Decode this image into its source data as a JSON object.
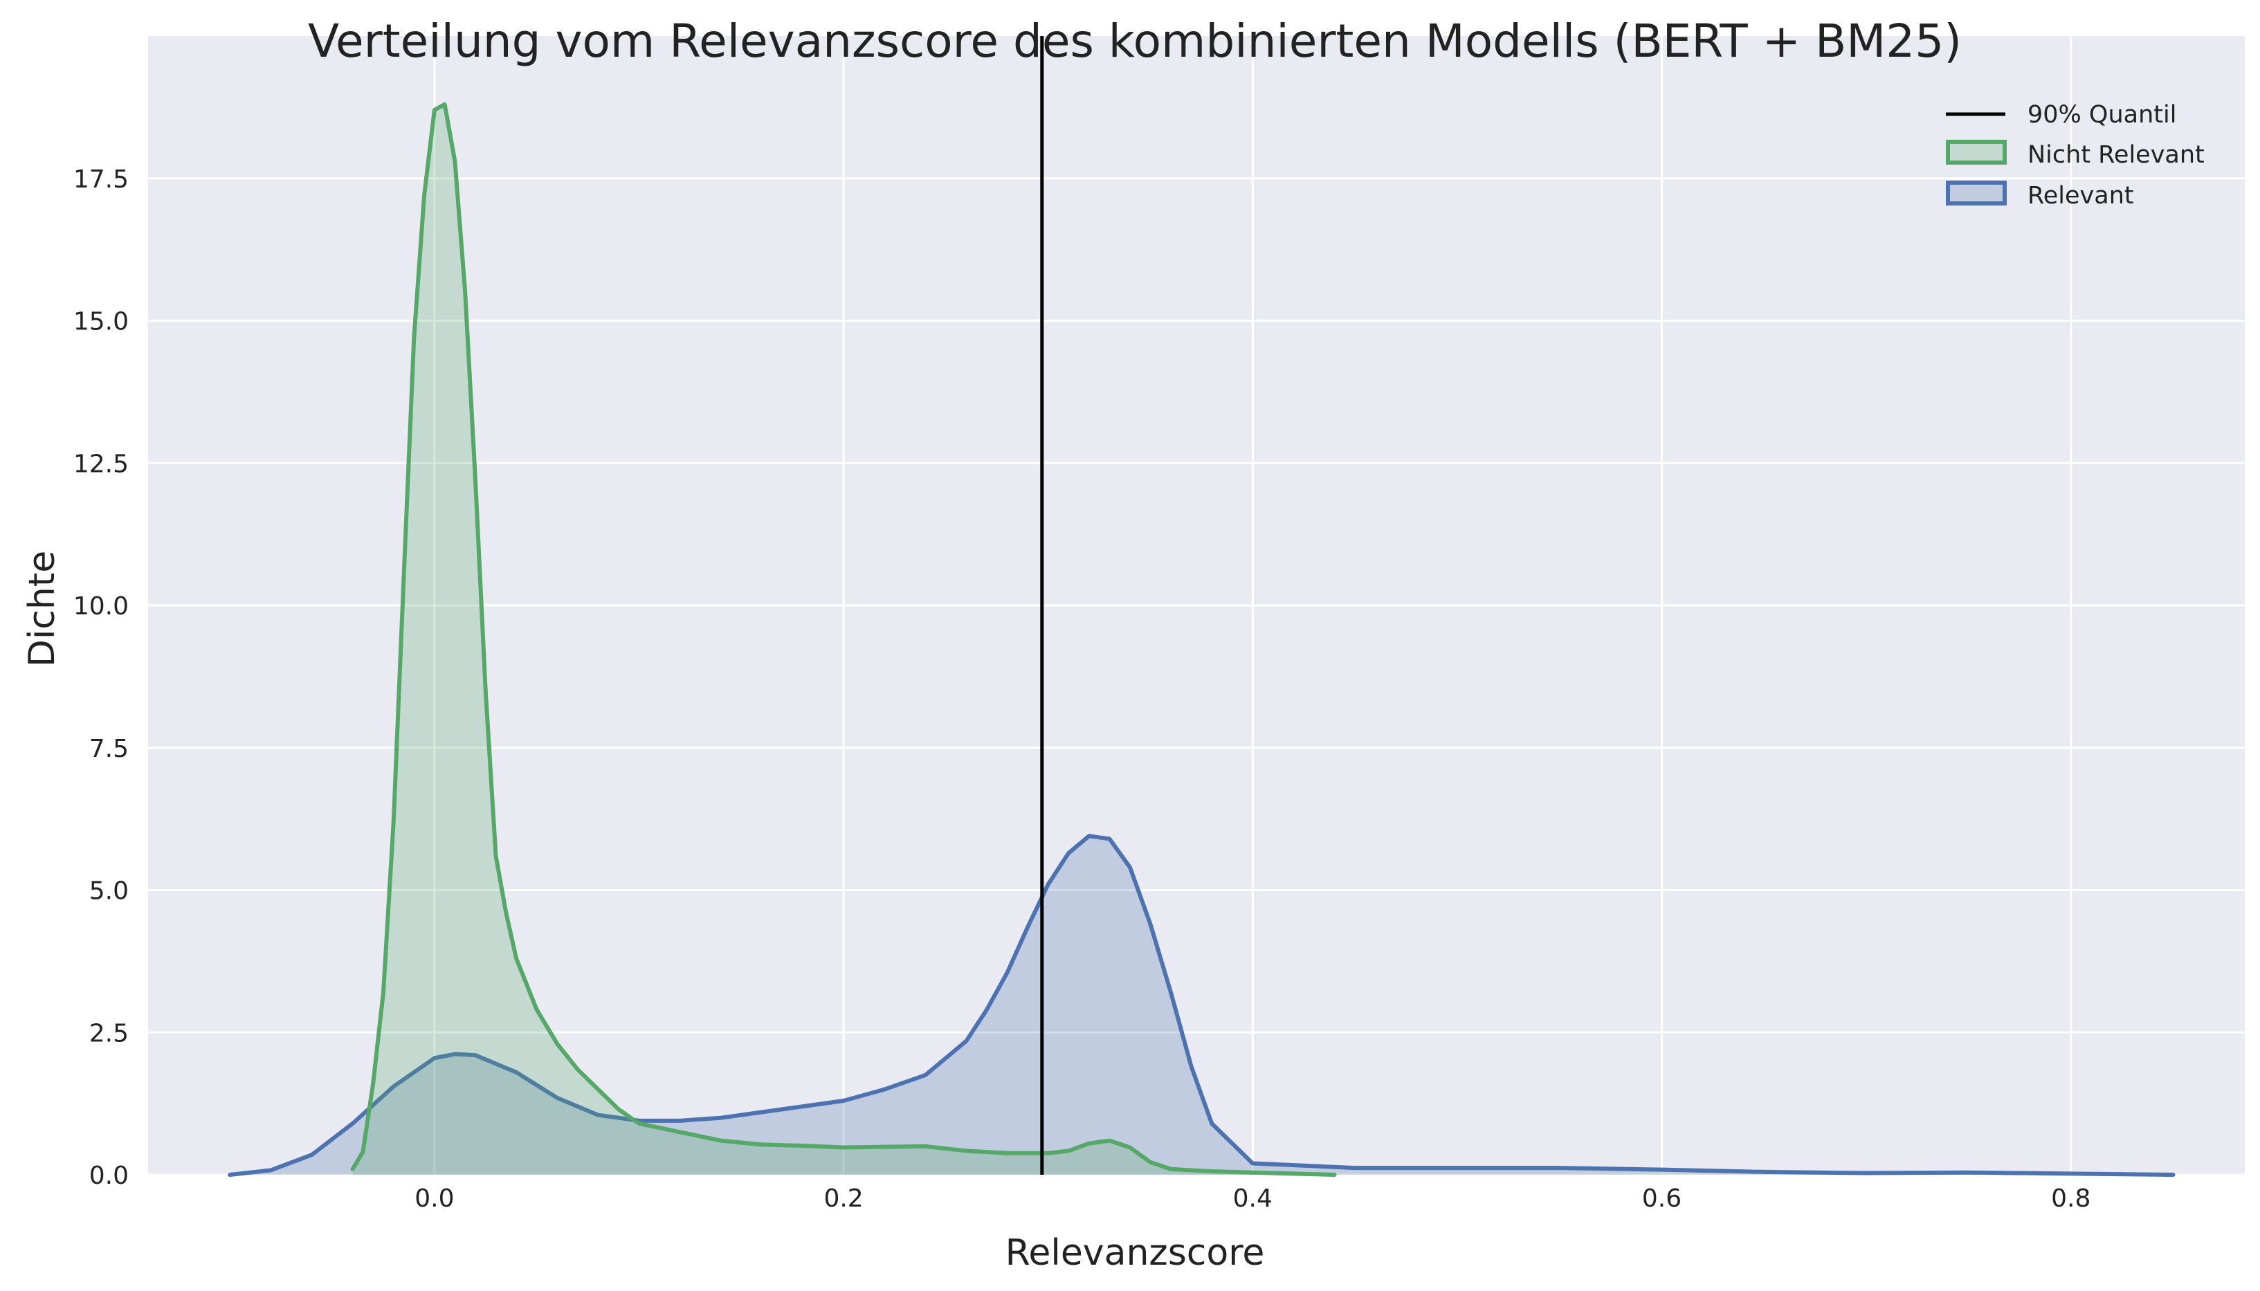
{
  "chart_data": {
    "type": "area",
    "title": "Verteilung vom Relevanzscore des kombinierten Modells (BERT + BM25)",
    "xlabel": "Relevanzscore",
    "ylabel": "Dichte",
    "xlim": [
      -0.14,
      0.885
    ],
    "ylim": [
      0,
      20
    ],
    "x_ticks": [
      0.0,
      0.2,
      0.4,
      0.6,
      0.8
    ],
    "x_tick_labels": [
      "0.0",
      "0.2",
      "0.4",
      "0.6",
      "0.8"
    ],
    "y_ticks": [
      0.0,
      2.5,
      5.0,
      7.5,
      10.0,
      12.5,
      15.0,
      17.5
    ],
    "y_tick_labels": [
      "0.0",
      "2.5",
      "5.0",
      "7.5",
      "10.0",
      "12.5",
      "15.0",
      "17.5"
    ],
    "grid": true,
    "legend_position": "top-right",
    "background_color": "#EAEAF2",
    "vlines": [
      {
        "name": "90% Quantil",
        "x": 0.297,
        "color": "#000000"
      }
    ],
    "series": [
      {
        "name": "Nicht Relevant",
        "color": "#55A868",
        "fill": "#55A868",
        "x": [
          -0.04,
          -0.035,
          -0.03,
          -0.025,
          -0.02,
          -0.015,
          -0.01,
          -0.005,
          0.0,
          0.005,
          0.01,
          0.015,
          0.02,
          0.025,
          0.03,
          0.035,
          0.04,
          0.05,
          0.06,
          0.07,
          0.08,
          0.09,
          0.1,
          0.12,
          0.14,
          0.16,
          0.18,
          0.2,
          0.22,
          0.24,
          0.26,
          0.28,
          0.3,
          0.31,
          0.32,
          0.33,
          0.34,
          0.35,
          0.36,
          0.38,
          0.4,
          0.42,
          0.44
        ],
        "y": [
          0.1,
          0.4,
          1.6,
          3.2,
          6.2,
          10.5,
          14.7,
          17.2,
          18.7,
          18.8,
          17.8,
          15.5,
          12.2,
          8.5,
          5.6,
          4.6,
          3.8,
          2.9,
          2.3,
          1.85,
          1.5,
          1.15,
          0.9,
          0.75,
          0.6,
          0.53,
          0.51,
          0.48,
          0.49,
          0.5,
          0.42,
          0.38,
          0.38,
          0.42,
          0.55,
          0.6,
          0.48,
          0.22,
          0.1,
          0.06,
          0.04,
          0.02,
          0.0
        ]
      },
      {
        "name": "Relevant",
        "color": "#4C72B0",
        "fill": "#4C72B0",
        "x": [
          -0.1,
          -0.08,
          -0.06,
          -0.04,
          -0.02,
          0.0,
          0.01,
          0.02,
          0.04,
          0.06,
          0.08,
          0.1,
          0.12,
          0.14,
          0.16,
          0.18,
          0.2,
          0.22,
          0.24,
          0.26,
          0.27,
          0.28,
          0.29,
          0.3,
          0.31,
          0.32,
          0.33,
          0.34,
          0.35,
          0.36,
          0.37,
          0.38,
          0.4,
          0.45,
          0.5,
          0.55,
          0.6,
          0.65,
          0.7,
          0.75,
          0.8,
          0.85
        ],
        "y": [
          0.0,
          0.08,
          0.35,
          0.9,
          1.55,
          2.05,
          2.12,
          2.1,
          1.8,
          1.35,
          1.05,
          0.95,
          0.95,
          1.0,
          1.1,
          1.2,
          1.3,
          1.5,
          1.75,
          2.35,
          2.9,
          3.55,
          4.35,
          5.1,
          5.65,
          5.95,
          5.9,
          5.4,
          4.4,
          3.2,
          1.9,
          0.9,
          0.2,
          0.12,
          0.12,
          0.12,
          0.09,
          0.05,
          0.03,
          0.04,
          0.02,
          0.0
        ]
      }
    ]
  }
}
